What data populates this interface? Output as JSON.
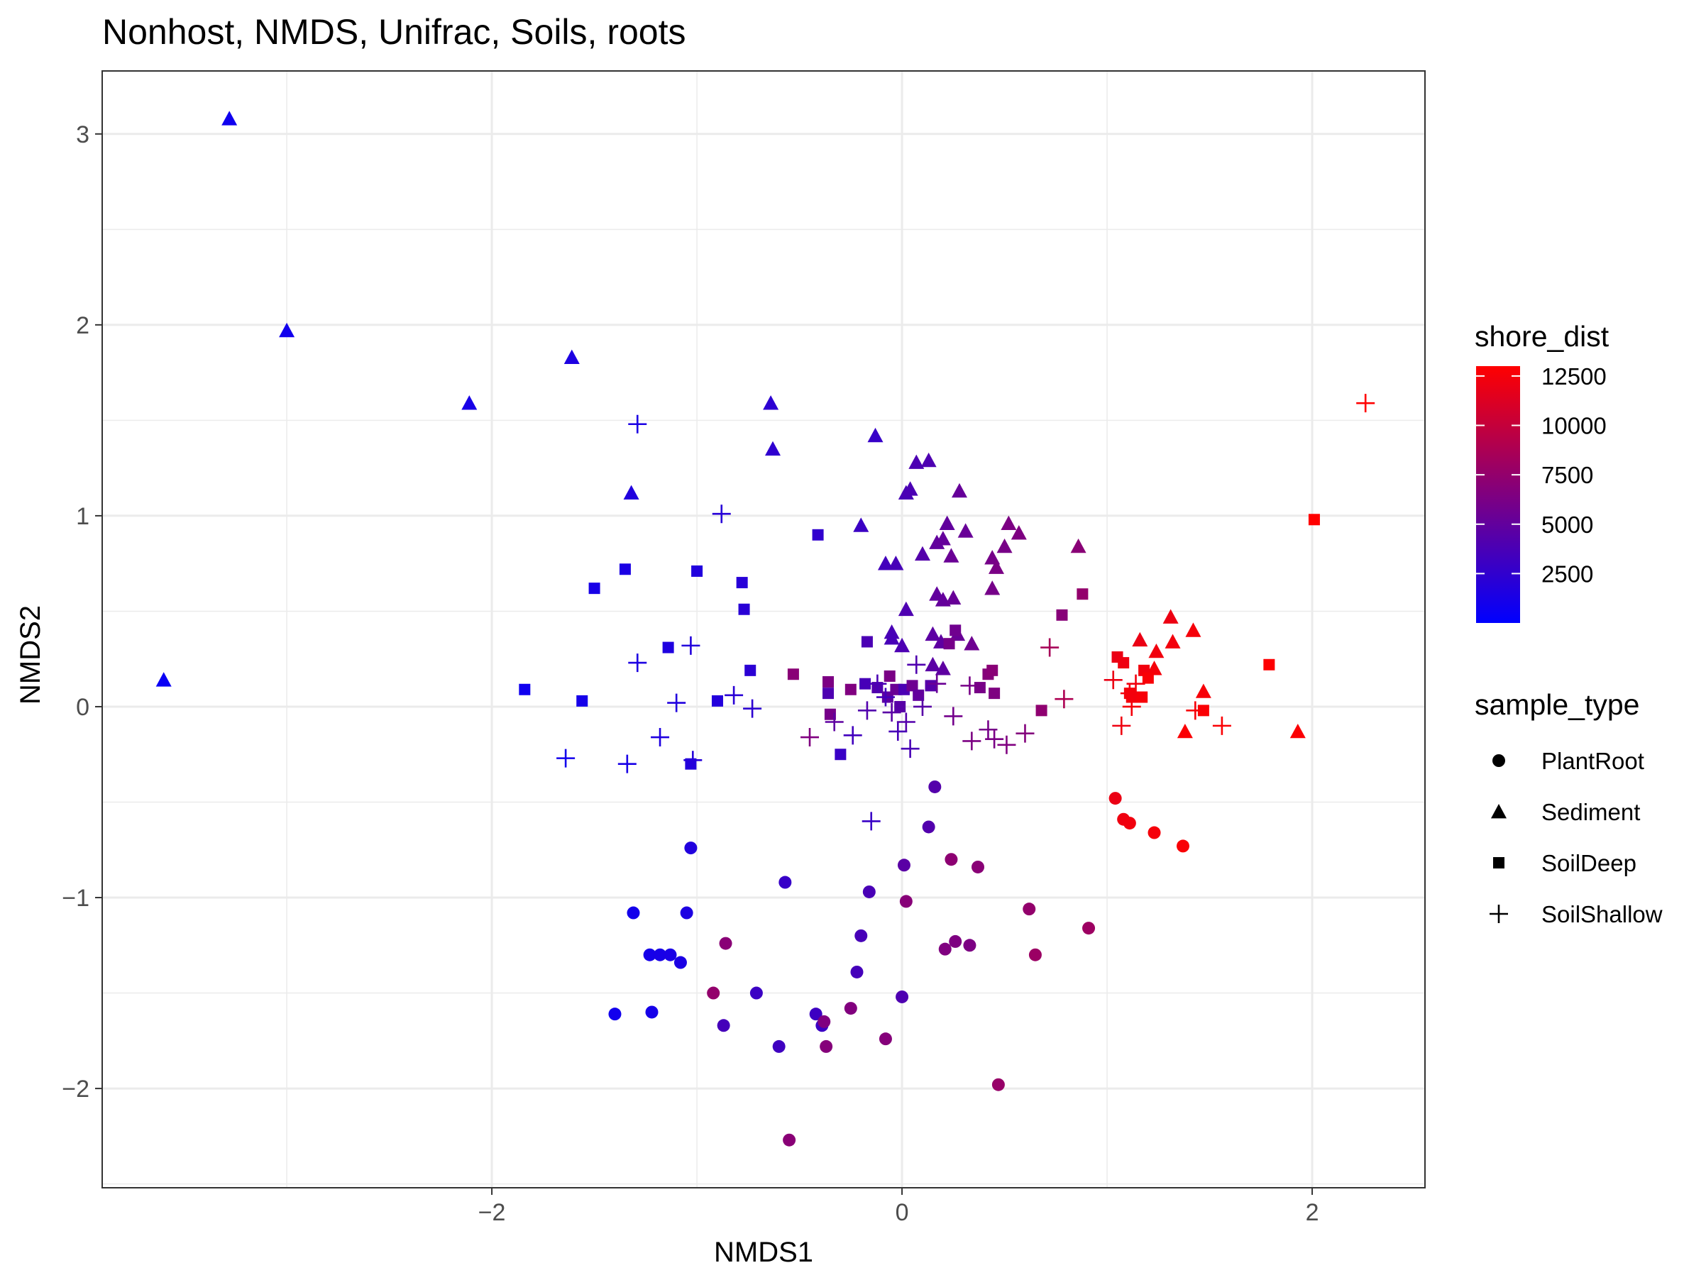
{
  "chart_data": {
    "type": "scatter",
    "title": "Nonhost, NMDS, Unifrac, Soils, roots",
    "xlabel": "NMDS1",
    "ylabel": "NMDS2",
    "xlim": [
      -3.9,
      2.55
    ],
    "ylim": [
      -2.52,
      3.33
    ],
    "x_ticks": [
      -2,
      0,
      2
    ],
    "x_tick_labels": [
      "−2",
      "0",
      "2"
    ],
    "y_ticks": [
      -2,
      -1,
      0,
      1,
      2,
      3
    ],
    "y_tick_labels": [
      "−2",
      "−1",
      "0",
      "1",
      "2",
      "3"
    ],
    "grid": true,
    "legend_position": "right",
    "color_legend": {
      "title": "shore_dist",
      "low_color": "#0000FF",
      "high_color": "#FF0000",
      "range": [
        0,
        13000
      ],
      "ticks": [
        2500,
        5000,
        7500,
        10000,
        12500
      ],
      "tick_labels": [
        "2500",
        "5000",
        "7500",
        "10000",
        "12500"
      ]
    },
    "shape_legend": {
      "title": "sample_type",
      "items": [
        {
          "label": "PlantRoot",
          "shape": "circle"
        },
        {
          "label": "Sediment",
          "shape": "triangle"
        },
        {
          "label": "SoilDeep",
          "shape": "square"
        },
        {
          "label": "SoilShallow",
          "shape": "plus"
        }
      ]
    },
    "point_columns": [
      "x",
      "y",
      "shore_dist",
      "sample_type"
    ],
    "points": [
      [
        -3.6,
        0.14,
        500,
        "Sediment"
      ],
      [
        -3.28,
        3.08,
        800,
        "Sediment"
      ],
      [
        -3.0,
        1.97,
        900,
        "Sediment"
      ],
      [
        -2.11,
        1.59,
        1200,
        "Sediment"
      ],
      [
        -1.61,
        1.83,
        1500,
        "Sediment"
      ],
      [
        -1.32,
        1.12,
        1700,
        "Sediment"
      ],
      [
        -0.64,
        1.59,
        2300,
        "Sediment"
      ],
      [
        -0.63,
        1.35,
        2400,
        "Sediment"
      ],
      [
        -0.2,
        0.95,
        3000,
        "Sediment"
      ],
      [
        -0.13,
        1.42,
        2800,
        "Sediment"
      ],
      [
        -0.08,
        0.75,
        3400,
        "Sediment"
      ],
      [
        -0.03,
        0.75,
        3600,
        "Sediment"
      ],
      [
        0.02,
        1.12,
        3700,
        "Sediment"
      ],
      [
        0.04,
        1.14,
        3800,
        "Sediment"
      ],
      [
        0.07,
        1.28,
        3900,
        "Sediment"
      ],
      [
        0.13,
        1.29,
        4000,
        "Sediment"
      ],
      [
        0.1,
        0.8,
        4300,
        "Sediment"
      ],
      [
        0.17,
        0.86,
        5000,
        "Sediment"
      ],
      [
        0.2,
        0.88,
        5100,
        "Sediment"
      ],
      [
        0.22,
        0.96,
        5000,
        "Sediment"
      ],
      [
        0.24,
        0.79,
        5400,
        "Sediment"
      ],
      [
        0.28,
        1.13,
        5200,
        "Sediment"
      ],
      [
        0.31,
        0.92,
        5300,
        "Sediment"
      ],
      [
        0.44,
        0.78,
        6000,
        "Sediment"
      ],
      [
        0.46,
        0.73,
        6200,
        "Sediment"
      ],
      [
        0.5,
        0.84,
        6100,
        "Sediment"
      ],
      [
        0.52,
        0.96,
        6300,
        "Sediment"
      ],
      [
        0.57,
        0.91,
        6400,
        "Sediment"
      ],
      [
        0.86,
        0.84,
        7000,
        "Sediment"
      ],
      [
        0.44,
        0.62,
        6000,
        "Sediment"
      ],
      [
        0.17,
        0.59,
        5000,
        "Sediment"
      ],
      [
        0.2,
        0.56,
        5100,
        "Sediment"
      ],
      [
        0.25,
        0.57,
        5300,
        "Sediment"
      ],
      [
        0.02,
        0.51,
        4000,
        "Sediment"
      ],
      [
        -0.05,
        0.39,
        3700,
        "Sediment"
      ],
      [
        0.0,
        0.32,
        3900,
        "Sediment"
      ],
      [
        0.15,
        0.38,
        4700,
        "Sediment"
      ],
      [
        0.19,
        0.34,
        4800,
        "Sediment"
      ],
      [
        0.27,
        0.38,
        5300,
        "Sediment"
      ],
      [
        0.34,
        0.33,
        5600,
        "Sediment"
      ],
      [
        0.15,
        0.22,
        4600,
        "Sediment"
      ],
      [
        0.2,
        0.2,
        4800,
        "Sediment"
      ],
      [
        -0.05,
        0.36,
        3600,
        "Sediment"
      ],
      [
        1.16,
        0.35,
        12000,
        "Sediment"
      ],
      [
        1.24,
        0.29,
        12300,
        "Sediment"
      ],
      [
        1.31,
        0.47,
        12100,
        "Sediment"
      ],
      [
        1.32,
        0.34,
        12400,
        "Sediment"
      ],
      [
        1.42,
        0.4,
        12500,
        "Sediment"
      ],
      [
        1.23,
        0.2,
        12500,
        "Sediment"
      ],
      [
        1.47,
        0.08,
        12600,
        "Sediment"
      ],
      [
        1.38,
        -0.13,
        12800,
        "Sediment"
      ],
      [
        1.93,
        -0.13,
        12800,
        "Sediment"
      ],
      [
        -1.84,
        0.09,
        800,
        "SoilDeep"
      ],
      [
        -1.56,
        0.03,
        1100,
        "SoilDeep"
      ],
      [
        -1.5,
        0.62,
        1200,
        "SoilDeep"
      ],
      [
        -1.35,
        0.72,
        1400,
        "SoilDeep"
      ],
      [
        -1.14,
        0.31,
        1600,
        "SoilDeep"
      ],
      [
        -1.0,
        0.71,
        1700,
        "SoilDeep"
      ],
      [
        -0.9,
        0.03,
        1800,
        "SoilDeep"
      ],
      [
        -0.78,
        0.65,
        2000,
        "SoilDeep"
      ],
      [
        -0.77,
        0.51,
        2100,
        "SoilDeep"
      ],
      [
        -0.74,
        0.19,
        2200,
        "SoilDeep"
      ],
      [
        -0.41,
        0.9,
        2500,
        "SoilDeep"
      ],
      [
        -1.03,
        -0.3,
        1800,
        "SoilDeep"
      ],
      [
        -0.53,
        0.17,
        7000,
        "SoilDeep"
      ],
      [
        -0.36,
        0.13,
        6300,
        "SoilDeep"
      ],
      [
        -0.36,
        0.07,
        4000,
        "SoilDeep"
      ],
      [
        -0.35,
        -0.04,
        6000,
        "SoilDeep"
      ],
      [
        -0.25,
        0.09,
        6500,
        "SoilDeep"
      ],
      [
        -0.3,
        -0.25,
        2900,
        "SoilDeep"
      ],
      [
        -0.18,
        0.12,
        3600,
        "SoilDeep"
      ],
      [
        -0.17,
        0.34,
        3800,
        "SoilDeep"
      ],
      [
        -0.12,
        0.1,
        4200,
        "SoilDeep"
      ],
      [
        -0.07,
        0.05,
        4800,
        "SoilDeep"
      ],
      [
        -0.06,
        0.16,
        6200,
        "SoilDeep"
      ],
      [
        -0.03,
        0.09,
        5400,
        "SoilDeep"
      ],
      [
        -0.01,
        0.0,
        4500,
        "SoilDeep"
      ],
      [
        0.01,
        0.09,
        3800,
        "SoilDeep"
      ],
      [
        0.05,
        0.11,
        5600,
        "SoilDeep"
      ],
      [
        0.08,
        0.06,
        5000,
        "SoilDeep"
      ],
      [
        0.14,
        0.11,
        4400,
        "SoilDeep"
      ],
      [
        0.23,
        0.33,
        6000,
        "SoilDeep"
      ],
      [
        0.26,
        0.4,
        5700,
        "SoilDeep"
      ],
      [
        0.38,
        0.1,
        6100,
        "SoilDeep"
      ],
      [
        0.42,
        0.17,
        6800,
        "SoilDeep"
      ],
      [
        0.44,
        0.19,
        7000,
        "SoilDeep"
      ],
      [
        0.45,
        0.07,
        6400,
        "SoilDeep"
      ],
      [
        0.68,
        -0.02,
        7300,
        "SoilDeep"
      ],
      [
        0.78,
        0.48,
        6900,
        "SoilDeep"
      ],
      [
        0.88,
        0.59,
        7500,
        "SoilDeep"
      ],
      [
        1.05,
        0.26,
        12000,
        "SoilDeep"
      ],
      [
        1.08,
        0.23,
        12200,
        "SoilDeep"
      ],
      [
        1.11,
        0.07,
        12500,
        "SoilDeep"
      ],
      [
        1.18,
        0.19,
        12300,
        "SoilDeep"
      ],
      [
        1.12,
        0.05,
        12400,
        "SoilDeep"
      ],
      [
        1.17,
        0.05,
        12600,
        "SoilDeep"
      ],
      [
        1.2,
        0.15,
        12700,
        "SoilDeep"
      ],
      [
        1.47,
        -0.02,
        12800,
        "SoilDeep"
      ],
      [
        1.79,
        0.22,
        12900,
        "SoilDeep"
      ],
      [
        2.01,
        0.98,
        13000,
        "SoilDeep"
      ],
      [
        -1.64,
        -0.27,
        900,
        "SoilShallow"
      ],
      [
        -1.34,
        -0.3,
        1200,
        "SoilShallow"
      ],
      [
        -1.29,
        1.48,
        1400,
        "SoilShallow"
      ],
      [
        -1.29,
        0.23,
        1500,
        "SoilShallow"
      ],
      [
        -1.18,
        -0.16,
        1600,
        "SoilShallow"
      ],
      [
        -1.1,
        0.02,
        1700,
        "SoilShallow"
      ],
      [
        -1.03,
        0.32,
        1800,
        "SoilShallow"
      ],
      [
        -1.02,
        -0.28,
        1900,
        "SoilShallow"
      ],
      [
        -0.88,
        1.01,
        2000,
        "SoilShallow"
      ],
      [
        -0.82,
        0.06,
        2100,
        "SoilShallow"
      ],
      [
        -0.73,
        -0.01,
        2300,
        "SoilShallow"
      ],
      [
        -0.45,
        -0.16,
        6500,
        "SoilShallow"
      ],
      [
        -0.33,
        -0.08,
        4800,
        "SoilShallow"
      ],
      [
        -0.24,
        -0.15,
        3300,
        "SoilShallow"
      ],
      [
        -0.15,
        -0.6,
        2900,
        "SoilShallow"
      ],
      [
        -0.17,
        -0.02,
        4200,
        "SoilShallow"
      ],
      [
        -0.12,
        0.12,
        3800,
        "SoilShallow"
      ],
      [
        -0.08,
        0.05,
        3500,
        "SoilShallow"
      ],
      [
        -0.05,
        -0.03,
        4600,
        "SoilShallow"
      ],
      [
        -0.02,
        -0.13,
        3600,
        "SoilShallow"
      ],
      [
        0.02,
        -0.08,
        4300,
        "SoilShallow"
      ],
      [
        0.04,
        -0.22,
        3700,
        "SoilShallow"
      ],
      [
        0.07,
        0.22,
        4100,
        "SoilShallow"
      ],
      [
        0.1,
        0.0,
        4500,
        "SoilShallow"
      ],
      [
        0.17,
        0.12,
        5400,
        "SoilShallow"
      ],
      [
        0.25,
        -0.05,
        5900,
        "SoilShallow"
      ],
      [
        0.33,
        0.11,
        6100,
        "SoilShallow"
      ],
      [
        0.34,
        -0.18,
        6300,
        "SoilShallow"
      ],
      [
        0.42,
        -0.12,
        6000,
        "SoilShallow"
      ],
      [
        0.45,
        -0.17,
        6200,
        "SoilShallow"
      ],
      [
        0.51,
        -0.2,
        6500,
        "SoilShallow"
      ],
      [
        0.6,
        -0.14,
        6700,
        "SoilShallow"
      ],
      [
        0.72,
        0.31,
        8500,
        "SoilShallow"
      ],
      [
        0.79,
        0.04,
        8800,
        "SoilShallow"
      ],
      [
        1.03,
        0.14,
        12000,
        "SoilShallow"
      ],
      [
        1.07,
        -0.1,
        12200,
        "SoilShallow"
      ],
      [
        1.11,
        0.07,
        12400,
        "SoilShallow"
      ],
      [
        1.14,
        0.12,
        12300,
        "SoilShallow"
      ],
      [
        1.12,
        0.0,
        12500,
        "SoilShallow"
      ],
      [
        1.43,
        -0.02,
        12600,
        "SoilShallow"
      ],
      [
        1.56,
        -0.1,
        12800,
        "SoilShallow"
      ],
      [
        2.26,
        1.59,
        13000,
        "SoilShallow"
      ],
      [
        -1.4,
        -1.61,
        900,
        "PlantRoot"
      ],
      [
        -1.31,
        -1.08,
        1000,
        "PlantRoot"
      ],
      [
        -1.23,
        -1.3,
        1100,
        "PlantRoot"
      ],
      [
        -1.22,
        -1.6,
        1100,
        "PlantRoot"
      ],
      [
        -1.18,
        -1.3,
        1200,
        "PlantRoot"
      ],
      [
        -1.13,
        -1.3,
        1300,
        "PlantRoot"
      ],
      [
        -1.08,
        -1.34,
        1400,
        "PlantRoot"
      ],
      [
        -1.05,
        -1.08,
        1500,
        "PlantRoot"
      ],
      [
        -1.03,
        -0.74,
        1700,
        "PlantRoot"
      ],
      [
        -0.92,
        -1.5,
        7500,
        "PlantRoot"
      ],
      [
        -0.87,
        -1.67,
        3500,
        "PlantRoot"
      ],
      [
        -0.86,
        -1.24,
        7000,
        "PlantRoot"
      ],
      [
        -0.71,
        -1.5,
        3000,
        "PlantRoot"
      ],
      [
        -0.6,
        -1.78,
        3200,
        "PlantRoot"
      ],
      [
        -0.57,
        -0.92,
        2800,
        "PlantRoot"
      ],
      [
        -0.55,
        -2.27,
        7000,
        "PlantRoot"
      ],
      [
        -0.42,
        -1.61,
        3100,
        "PlantRoot"
      ],
      [
        -0.39,
        -1.67,
        3000,
        "PlantRoot"
      ],
      [
        -0.38,
        -1.65,
        6500,
        "PlantRoot"
      ],
      [
        -0.37,
        -1.78,
        6800,
        "PlantRoot"
      ],
      [
        -0.25,
        -1.58,
        6600,
        "PlantRoot"
      ],
      [
        -0.22,
        -1.39,
        3500,
        "PlantRoot"
      ],
      [
        -0.2,
        -1.2,
        3600,
        "PlantRoot"
      ],
      [
        -0.16,
        -0.97,
        3700,
        "PlantRoot"
      ],
      [
        -0.08,
        -1.74,
        6800,
        "PlantRoot"
      ],
      [
        0.0,
        -1.52,
        4000,
        "PlantRoot"
      ],
      [
        0.01,
        -0.83,
        4600,
        "PlantRoot"
      ],
      [
        0.02,
        -1.02,
        6900,
        "PlantRoot"
      ],
      [
        0.13,
        -0.63,
        4200,
        "PlantRoot"
      ],
      [
        0.16,
        -0.42,
        4300,
        "PlantRoot"
      ],
      [
        0.21,
        -1.27,
        6500,
        "PlantRoot"
      ],
      [
        0.24,
        -0.8,
        7200,
        "PlantRoot"
      ],
      [
        0.26,
        -1.23,
        6400,
        "PlantRoot"
      ],
      [
        0.33,
        -1.25,
        6300,
        "PlantRoot"
      ],
      [
        0.37,
        -0.84,
        7000,
        "PlantRoot"
      ],
      [
        0.47,
        -1.98,
        7700,
        "PlantRoot"
      ],
      [
        0.62,
        -1.06,
        7500,
        "PlantRoot"
      ],
      [
        0.65,
        -1.3,
        7900,
        "PlantRoot"
      ],
      [
        0.91,
        -1.16,
        8000,
        "PlantRoot"
      ],
      [
        1.04,
        -0.48,
        12000,
        "PlantRoot"
      ],
      [
        1.08,
        -0.59,
        12200,
        "PlantRoot"
      ],
      [
        1.11,
        -0.61,
        12300,
        "PlantRoot"
      ],
      [
        1.23,
        -0.66,
        12500,
        "PlantRoot"
      ],
      [
        1.37,
        -0.73,
        12700,
        "PlantRoot"
      ]
    ]
  }
}
